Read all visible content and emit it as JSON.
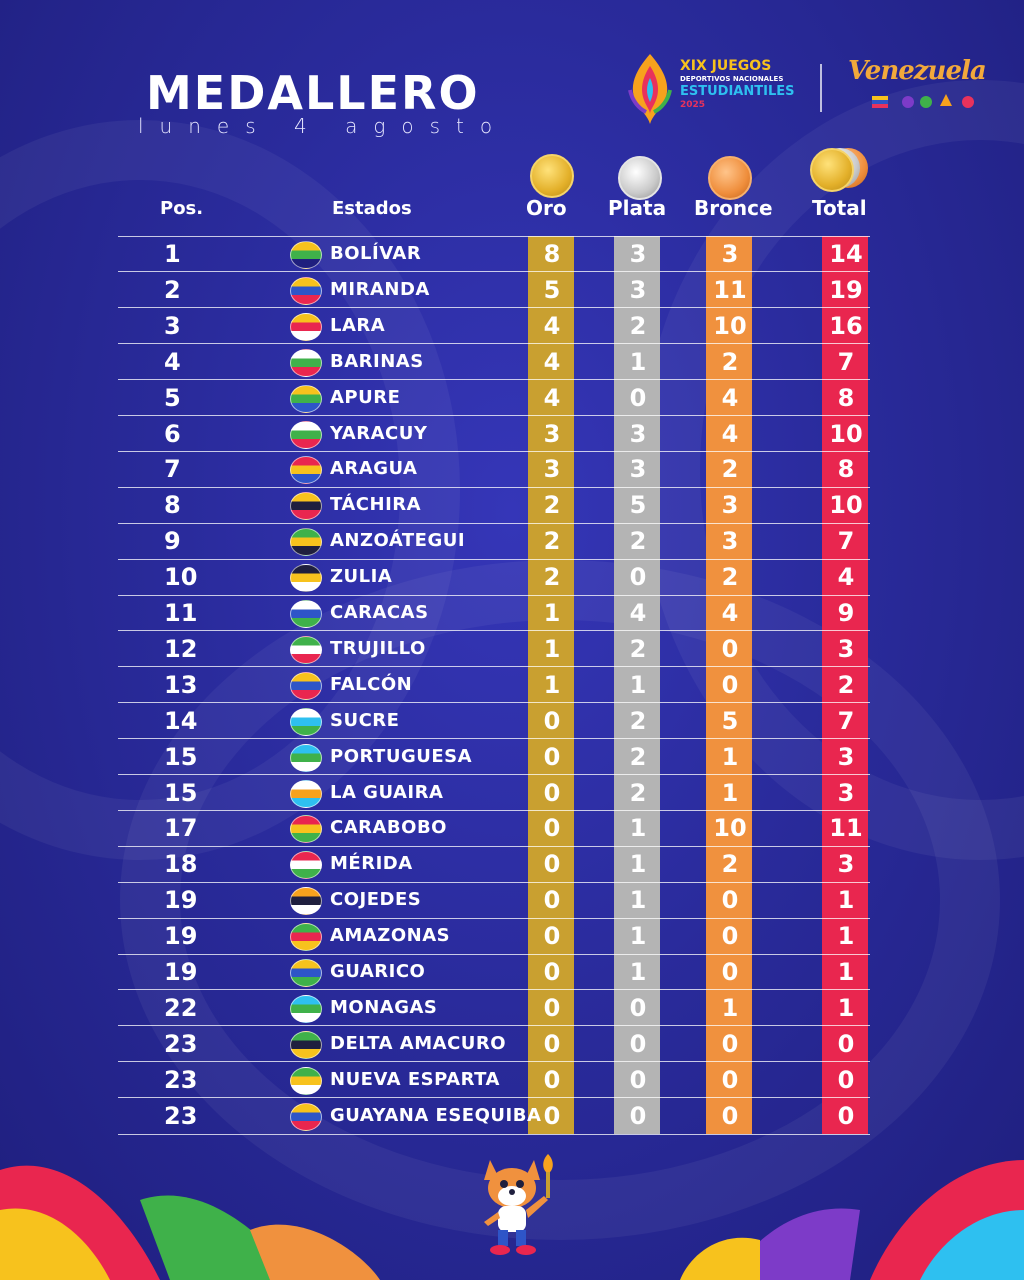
{
  "header": {
    "title": "MEDALLERO",
    "subtitle": "lunes 4 agosto"
  },
  "event_logo": {
    "line1": "XIX JUEGOS",
    "line2": "DEPORTIVOS NACIONALES",
    "line3": "ESTUDIANTILES",
    "line4": "2025"
  },
  "country_logo": {
    "text": "Venezuela"
  },
  "columns": {
    "pos": "Pos.",
    "estados": "Estados",
    "oro": "Oro",
    "plata": "Plata",
    "bronce": "Bronce",
    "total": "Total"
  },
  "colors": {
    "background": "#2a2b9c",
    "oro": "#c9a030",
    "plata": "#b4b4b4",
    "bronce": "#f0913e",
    "total": "#e9264f"
  },
  "rows": [
    {
      "pos": "1",
      "estado": "BOLÍVAR",
      "oro": "8",
      "plata": "3",
      "bronce": "3",
      "total": "14"
    },
    {
      "pos": "2",
      "estado": "MIRANDA",
      "oro": "5",
      "plata": "3",
      "bronce": "11",
      "total": "19"
    },
    {
      "pos": "3",
      "estado": "LARA",
      "oro": "4",
      "plata": "2",
      "bronce": "10",
      "total": "16"
    },
    {
      "pos": "4",
      "estado": "BARINAS",
      "oro": "4",
      "plata": "1",
      "bronce": "2",
      "total": "7"
    },
    {
      "pos": "5",
      "estado": "APURE",
      "oro": "4",
      "plata": "0",
      "bronce": "4",
      "total": "8"
    },
    {
      "pos": "6",
      "estado": "YARACUY",
      "oro": "3",
      "plata": "3",
      "bronce": "4",
      "total": "10"
    },
    {
      "pos": "7",
      "estado": "ARAGUA",
      "oro": "3",
      "plata": "3",
      "bronce": "2",
      "total": "8"
    },
    {
      "pos": "8",
      "estado": "TÁCHIRA",
      "oro": "2",
      "plata": "5",
      "bronce": "3",
      "total": "10"
    },
    {
      "pos": "9",
      "estado": "ANZOÁTEGUI",
      "oro": "2",
      "plata": "2",
      "bronce": "3",
      "total": "7"
    },
    {
      "pos": "10",
      "estado": "ZULIA",
      "oro": "2",
      "plata": "0",
      "bronce": "2",
      "total": "4"
    },
    {
      "pos": "11",
      "estado": "CARACAS",
      "oro": "1",
      "plata": "4",
      "bronce": "4",
      "total": "9"
    },
    {
      "pos": "12",
      "estado": "TRUJILLO",
      "oro": "1",
      "plata": "2",
      "bronce": "0",
      "total": "3"
    },
    {
      "pos": "13",
      "estado": "FALCÓN",
      "oro": "1",
      "plata": "1",
      "bronce": "0",
      "total": "2"
    },
    {
      "pos": "14",
      "estado": "SUCRE",
      "oro": "0",
      "plata": "2",
      "bronce": "5",
      "total": "7"
    },
    {
      "pos": "15",
      "estado": "PORTUGUESA",
      "oro": "0",
      "plata": "2",
      "bronce": "1",
      "total": "3"
    },
    {
      "pos": "15",
      "estado": "LA GUAIRA",
      "oro": "0",
      "plata": "2",
      "bronce": "1",
      "total": "3"
    },
    {
      "pos": "17",
      "estado": "CARABOBO",
      "oro": "0",
      "plata": "1",
      "bronce": "10",
      "total": "11"
    },
    {
      "pos": "18",
      "estado": "MÉRIDA",
      "oro": "0",
      "plata": "1",
      "bronce": "2",
      "total": "3"
    },
    {
      "pos": "19",
      "estado": "COJEDES",
      "oro": "0",
      "plata": "1",
      "bronce": "0",
      "total": "1"
    },
    {
      "pos": "19",
      "estado": "AMAZONAS",
      "oro": "0",
      "plata": "1",
      "bronce": "0",
      "total": "1"
    },
    {
      "pos": "19",
      "estado": "GUARICO",
      "oro": "0",
      "plata": "1",
      "bronce": "0",
      "total": "1"
    },
    {
      "pos": "22",
      "estado": "MONAGAS",
      "oro": "0",
      "plata": "0",
      "bronce": "1",
      "total": "1"
    },
    {
      "pos": "23",
      "estado": "DELTA AMACURO",
      "oro": "0",
      "plata": "0",
      "bronce": "0",
      "total": "0"
    },
    {
      "pos": "23",
      "estado": "NUEVA ESPARTA",
      "oro": "0",
      "plata": "0",
      "bronce": "0",
      "total": "0"
    },
    {
      "pos": "23",
      "estado": "GUAYANA ESEQUIBA",
      "oro": "0",
      "plata": "0",
      "bronce": "0",
      "total": "0"
    }
  ],
  "flag_icons": [
    "bolivar-flag-icon",
    "miranda-flag-icon",
    "lara-flag-icon",
    "barinas-flag-icon",
    "apure-flag-icon",
    "yaracuy-flag-icon",
    "aragua-flag-icon",
    "tachira-flag-icon",
    "anzoategui-flag-icon",
    "zulia-flag-icon",
    "caracas-flag-icon",
    "trujillo-flag-icon",
    "falcon-flag-icon",
    "sucre-flag-icon",
    "portuguesa-flag-icon",
    "la-guaira-flag-icon",
    "carabobo-flag-icon",
    "merida-flag-icon",
    "cojedes-flag-icon",
    "amazonas-flag-icon",
    "guarico-flag-icon",
    "monagas-flag-icon",
    "delta-amacuro-flag-icon",
    "nueva-esparta-flag-icon",
    "guayana-esequiba-flag-icon"
  ]
}
